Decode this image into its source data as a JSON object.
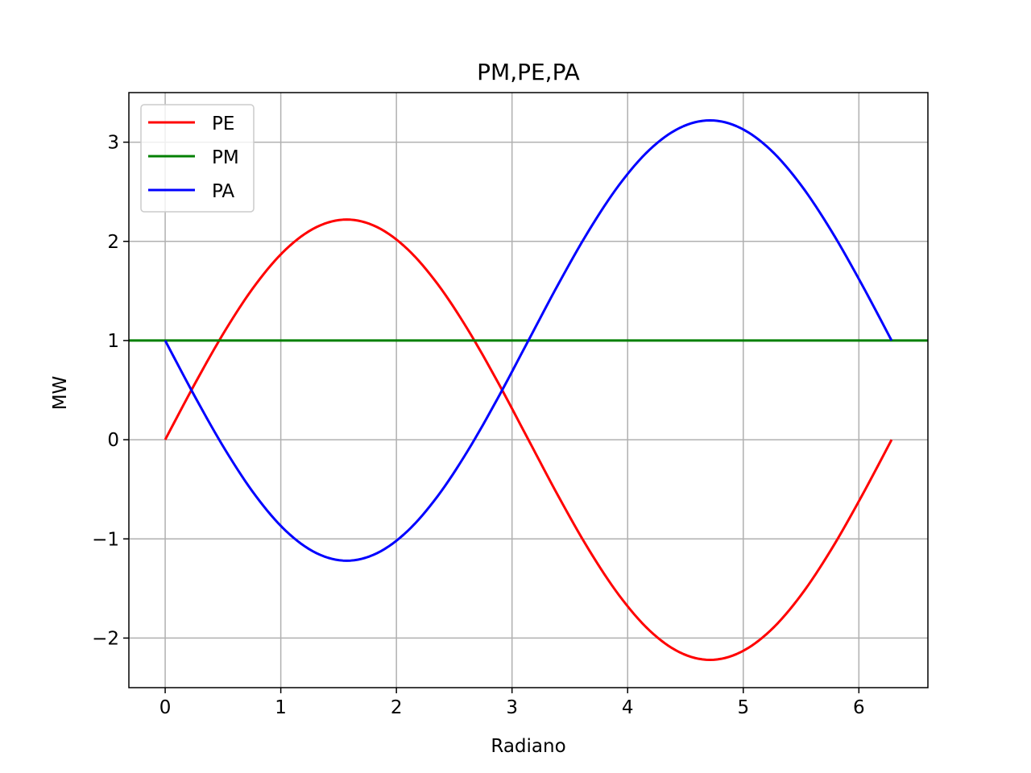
{
  "chart_data": {
    "type": "line",
    "title": "PM,PE,PA",
    "xlabel": "Radiano",
    "ylabel": "MW",
    "xlim": [
      -0.314,
      6.597
    ],
    "ylim": [
      -2.5,
      3.5
    ],
    "grid": true,
    "legend_position": "top-left",
    "x_ticks": [
      0,
      1,
      2,
      3,
      4,
      5,
      6
    ],
    "x_tick_labels": [
      "0",
      "1",
      "2",
      "3",
      "4",
      "5",
      "6"
    ],
    "y_ticks": [
      -2,
      -1,
      0,
      1,
      2,
      3
    ],
    "y_tick_labels": [
      "−2",
      "−1",
      "0",
      "1",
      "2",
      "3"
    ],
    "x": [
      0,
      0.2618,
      0.5236,
      0.7854,
      1.0472,
      1.309,
      1.5708,
      1.8326,
      2.0944,
      2.3562,
      2.618,
      2.8798,
      3.1416,
      3.4034,
      3.6652,
      3.927,
      4.1888,
      4.4506,
      4.7124,
      4.9742,
      5.236,
      5.4978,
      5.7596,
      6.0214,
      6.2832
    ],
    "series": [
      {
        "name": "PE",
        "color": "#ff0000",
        "values": [
          0,
          0.575,
          1.11,
          1.57,
          1.923,
          2.144,
          2.22,
          2.144,
          1.923,
          1.57,
          1.11,
          0.575,
          0,
          -0.575,
          -1.11,
          -1.57,
          -1.923,
          -2.144,
          -2.22,
          -2.144,
          -1.923,
          -1.57,
          -1.11,
          -0.575,
          0
        ]
      },
      {
        "name": "PM",
        "color": "#008000",
        "values": [
          1,
          1,
          1,
          1,
          1,
          1,
          1,
          1,
          1,
          1,
          1,
          1,
          1,
          1,
          1,
          1,
          1,
          1,
          1,
          1,
          1,
          1,
          1,
          1,
          1
        ],
        "span": "full-axis"
      },
      {
        "name": "PA",
        "color": "#0000ff",
        "values": [
          1,
          0.425,
          -0.11,
          -0.57,
          -0.923,
          -1.144,
          -1.22,
          -1.144,
          -0.923,
          -0.57,
          -0.11,
          0.425,
          1,
          1.575,
          2.11,
          2.57,
          2.923,
          3.144,
          3.22,
          3.144,
          2.923,
          2.57,
          2.11,
          1.575,
          1
        ]
      }
    ]
  }
}
